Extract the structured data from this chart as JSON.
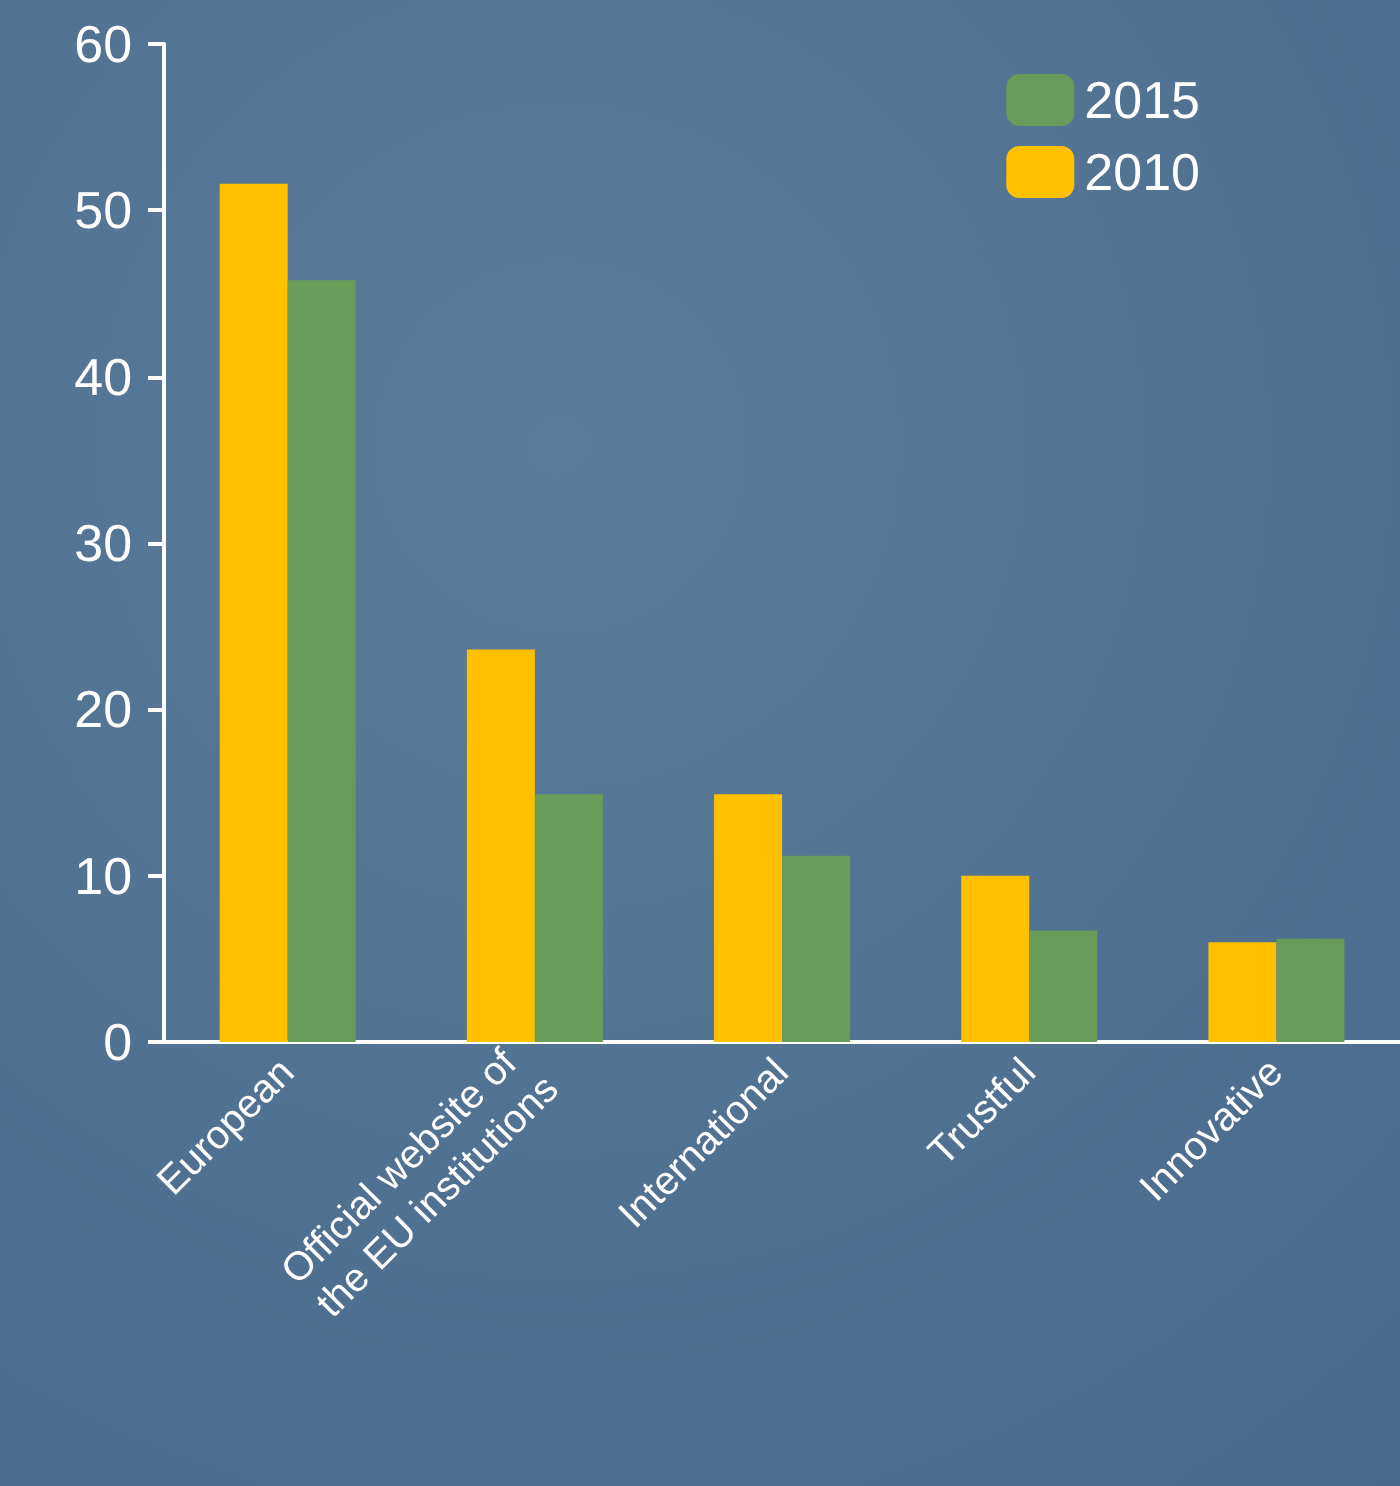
{
  "chart_data": {
    "type": "bar",
    "categories": [
      "European",
      "Official website of the EU institutions",
      "International",
      "Trustful",
      "Innovative"
    ],
    "series": [
      {
        "name": "2010",
        "color": "#ffc000",
        "values": [
          51.6,
          23.6,
          14.9,
          10.0,
          6.0
        ]
      },
      {
        "name": "2015",
        "color": "#699c59",
        "values": [
          45.8,
          14.9,
          11.2,
          6.7,
          6.2
        ]
      }
    ],
    "ylim": [
      0,
      60
    ],
    "yticks": [
      0,
      10,
      20,
      30,
      40,
      50,
      60
    ],
    "grid": false,
    "legend": "top right"
  }
}
